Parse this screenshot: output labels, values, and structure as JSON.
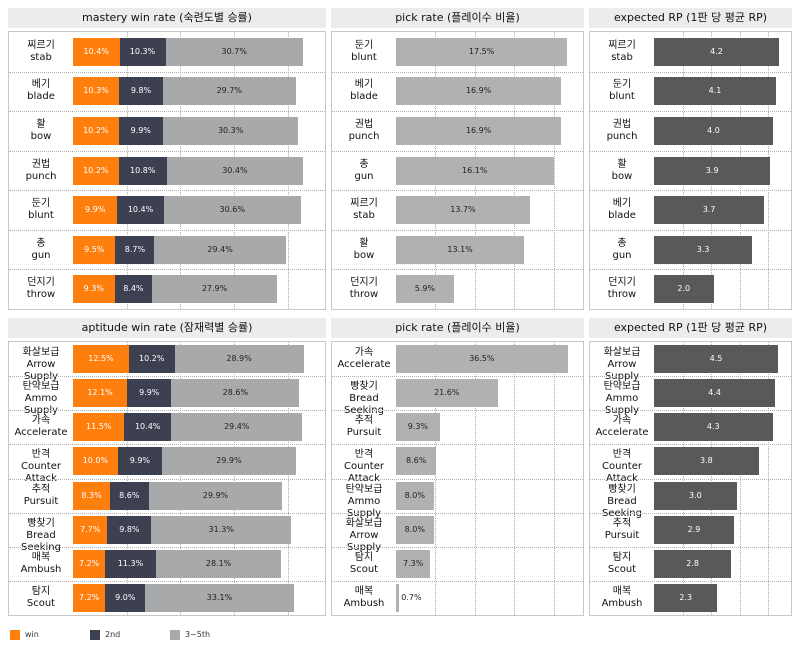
{
  "colors": {
    "win": "#ff7f0e",
    "second": "#3d4050",
    "third_to_fifth": "#a8a9ab",
    "pick": "#b0b1b3",
    "rp": "#595959"
  },
  "legend": [
    {
      "label": "win",
      "color": "#ff7f0e"
    },
    {
      "label": "2nd",
      "color": "#3d4050"
    },
    {
      "label": "3~5th",
      "color": "#a8a9ab"
    }
  ],
  "chart_data": [
    {
      "type": "bar",
      "stacked": true,
      "title": "mastery win rate (숙련도별 승률)",
      "categories": [
        {
          "ko": "찌르기",
          "en": "stab"
        },
        {
          "ko": "베기",
          "en": "blade"
        },
        {
          "ko": "활",
          "en": "bow"
        },
        {
          "ko": "권법",
          "en": "punch"
        },
        {
          "ko": "둔기",
          "en": "blunt"
        },
        {
          "ko": "총",
          "en": "gun"
        },
        {
          "ko": "던지기",
          "en": "throw"
        }
      ],
      "series": [
        {
          "name": "win",
          "values": [
            10.4,
            10.3,
            10.2,
            10.2,
            9.9,
            9.5,
            9.3
          ],
          "labels": [
            "10.4%",
            "10.3%",
            "10.2%",
            "10.2%",
            "9.9%",
            "9.5%",
            "9.3%"
          ]
        },
        {
          "name": "2nd",
          "values": [
            10.3,
            9.8,
            9.9,
            10.8,
            10.4,
            8.7,
            8.4
          ],
          "labels": [
            "10.3%",
            "9.8%",
            "9.9%",
            "10.8%",
            "10.4%",
            "8.7%",
            "8.4%"
          ]
        },
        {
          "name": "3~5th",
          "values": [
            30.7,
            29.7,
            30.3,
            30.4,
            30.6,
            29.4,
            27.9
          ],
          "labels": [
            "30.7%",
            "29.7%",
            "30.3%",
            "30.4%",
            "30.6%",
            "29.4%",
            "27.9%"
          ]
        }
      ],
      "xlim": [
        0,
        55
      ],
      "orientation": "horizontal"
    },
    {
      "type": "bar",
      "title": "pick rate (플레이수 비율)",
      "categories": [
        {
          "ko": "둔기",
          "en": "blunt"
        },
        {
          "ko": "베기",
          "en": "blade"
        },
        {
          "ko": "권법",
          "en": "punch"
        },
        {
          "ko": "총",
          "en": "gun"
        },
        {
          "ko": "찌르기",
          "en": "stab"
        },
        {
          "ko": "활",
          "en": "bow"
        },
        {
          "ko": "던지기",
          "en": "throw"
        }
      ],
      "values": [
        17.5,
        16.9,
        16.9,
        16.1,
        13.7,
        13.1,
        5.9
      ],
      "labels": [
        "17.5%",
        "16.9%",
        "16.9%",
        "16.1%",
        "13.7%",
        "13.1%",
        "5.9%"
      ],
      "xlim": [
        0,
        18.5
      ],
      "orientation": "horizontal"
    },
    {
      "type": "bar",
      "title": "expected RP (1판 당 평균 RP)",
      "categories": [
        {
          "ko": "찌르기",
          "en": "stab"
        },
        {
          "ko": "둔기",
          "en": "blunt"
        },
        {
          "ko": "권법",
          "en": "punch"
        },
        {
          "ko": "활",
          "en": "bow"
        },
        {
          "ko": "베기",
          "en": "blade"
        },
        {
          "ko": "총",
          "en": "gun"
        },
        {
          "ko": "던지기",
          "en": "throw"
        }
      ],
      "values": [
        4.2,
        4.1,
        4.0,
        3.9,
        3.7,
        3.3,
        2.0
      ],
      "labels": [
        "4.2",
        "4.1",
        "4.0",
        "3.9",
        "3.7",
        "3.3",
        "2.0"
      ],
      "xlim": [
        0,
        4.4
      ],
      "orientation": "horizontal"
    },
    {
      "type": "bar",
      "stacked": true,
      "title": "aptitude win rate (잠재력별 승률)",
      "categories": [
        {
          "ko": "화살보급",
          "en": "Arrow Supply"
        },
        {
          "ko": "탄약보급",
          "en": "Ammo Supply"
        },
        {
          "ko": "가속",
          "en": "Accelerate"
        },
        {
          "ko": "반격",
          "en": "Counter Attack"
        },
        {
          "ko": "추적",
          "en": "Pursuit"
        },
        {
          "ko": "빵찾기",
          "en": "Bread Seeking"
        },
        {
          "ko": "매복",
          "en": "Ambush"
        },
        {
          "ko": "탐지",
          "en": "Scout"
        }
      ],
      "series": [
        {
          "name": "win",
          "values": [
            12.5,
            12.1,
            11.5,
            10.0,
            8.3,
            7.7,
            7.2,
            7.2
          ],
          "labels": [
            "12.5%",
            "12.1%",
            "11.5%",
            "10.0%",
            "8.3%",
            "7.7%",
            "7.2%",
            "7.2%"
          ]
        },
        {
          "name": "2nd",
          "values": [
            10.2,
            9.9,
            10.4,
            9.9,
            8.6,
            9.8,
            11.3,
            9.0
          ],
          "labels": [
            "10.2%",
            "9.9%",
            "10.4%",
            "9.9%",
            "8.6%",
            "9.8%",
            "11.3%",
            "9.0%"
          ]
        },
        {
          "name": "3~5th",
          "values": [
            28.9,
            28.6,
            29.4,
            29.9,
            29.9,
            31.3,
            28.1,
            33.1
          ],
          "labels": [
            "28.9%",
            "28.6%",
            "29.4%",
            "29.9%",
            "29.9%",
            "31.3%",
            "28.1%",
            "33.1%"
          ]
        }
      ],
      "xlim": [
        0,
        55
      ],
      "orientation": "horizontal"
    },
    {
      "type": "bar",
      "title": "pick rate (플레이수 비율)",
      "categories": [
        {
          "ko": "가속",
          "en": "Accelerate"
        },
        {
          "ko": "빵찾기",
          "en": "Bread Seeking"
        },
        {
          "ko": "추적",
          "en": "Pursuit"
        },
        {
          "ko": "반격",
          "en": "Counter Attack"
        },
        {
          "ko": "탄약보급",
          "en": "Ammo Supply"
        },
        {
          "ko": "화살보급",
          "en": "Arrow Supply"
        },
        {
          "ko": "탐지",
          "en": "Scout"
        },
        {
          "ko": "매복",
          "en": "Ambush"
        }
      ],
      "values": [
        36.5,
        21.6,
        9.3,
        8.6,
        8.0,
        8.0,
        7.3,
        0.7
      ],
      "labels": [
        "36.5%",
        "21.6%",
        "9.3%",
        "8.6%",
        "8.0%",
        "8.0%",
        "7.3%",
        "0.7%"
      ],
      "xlim": [
        0,
        38.5
      ],
      "orientation": "horizontal"
    },
    {
      "type": "bar",
      "title": "expected RP (1판 당 평균 RP)",
      "categories": [
        {
          "ko": "화살보급",
          "en": "Arrow Supply"
        },
        {
          "ko": "탄약보급",
          "en": "Ammo Supply"
        },
        {
          "ko": "가속",
          "en": "Accelerate"
        },
        {
          "ko": "반격",
          "en": "Counter Attack"
        },
        {
          "ko": "빵찾기",
          "en": "Bread Seeking"
        },
        {
          "ko": "추적",
          "en": "Pursuit"
        },
        {
          "ko": "탐지",
          "en": "Scout"
        },
        {
          "ko": "매복",
          "en": "Ambush"
        }
      ],
      "values": [
        4.5,
        4.4,
        4.3,
        3.8,
        3.0,
        2.9,
        2.8,
        2.3
      ],
      "labels": [
        "4.5",
        "4.4",
        "4.3",
        "3.8",
        "3.0",
        "2.9",
        "2.8",
        "2.3"
      ],
      "xlim": [
        0,
        4.75
      ],
      "orientation": "horizontal"
    }
  ]
}
